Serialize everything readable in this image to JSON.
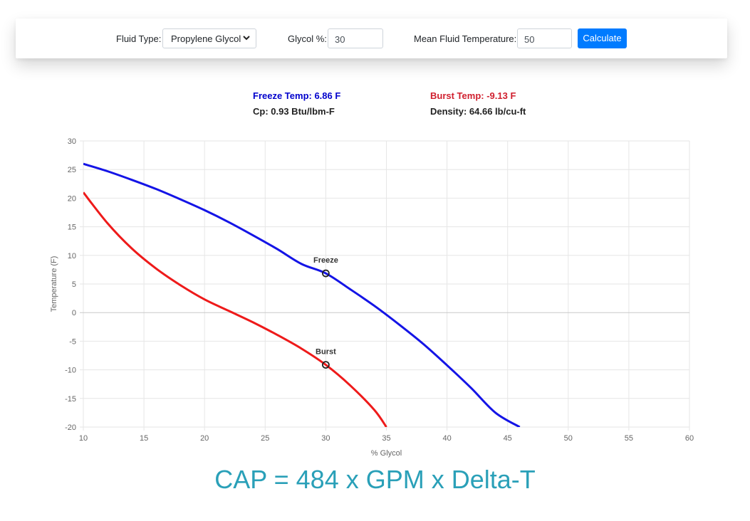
{
  "toolbar": {
    "fluid_type_label": "Fluid Type:",
    "fluid_type_value": "Propylene Glycol",
    "glycol_label": "Glycol %:",
    "glycol_value": "30",
    "mean_temp_label": "Mean Fluid Temperature:",
    "mean_temp_value": "50",
    "calculate_label": "Calculate"
  },
  "results": {
    "freeze": "Freeze Temp: 6.86 F",
    "burst": "Burst Temp: -9.13 F",
    "cp": "Cp: 0.93 Btu/lbm-F",
    "density": "Density: 64.66 lb/cu-ft"
  },
  "chart_data": {
    "type": "line",
    "xlabel": "% Glycol",
    "ylabel": "Temperature (F)",
    "xlim": [
      10,
      60
    ],
    "ylim": [
      -20,
      30
    ],
    "x_ticks": [
      10,
      15,
      20,
      25,
      30,
      35,
      40,
      45,
      50,
      55,
      60
    ],
    "y_ticks": [
      30,
      25,
      20,
      15,
      10,
      5,
      0,
      -5,
      -10,
      -15,
      -20
    ],
    "grid": true,
    "series": [
      {
        "color": "#1414e6",
        "x": [
          10,
          12,
          14,
          16,
          18,
          20,
          22,
          24,
          26,
          28,
          30,
          32,
          34,
          36,
          38,
          40,
          42,
          44,
          46
        ],
        "y": [
          26,
          24.7,
          23.2,
          21.6,
          19.8,
          17.9,
          15.8,
          13.5,
          11.1,
          8.5,
          6.86,
          4.1,
          1.2,
          -2.0,
          -5.4,
          -9.2,
          -13.2,
          -17.5,
          -20.0
        ]
      },
      {
        "color": "#ee1a1a",
        "x": [
          10,
          12,
          14,
          16,
          18,
          20,
          22,
          24,
          26,
          28,
          30,
          32,
          34,
          35
        ],
        "y": [
          21,
          15.6,
          11.2,
          7.7,
          4.8,
          2.3,
          0.3,
          -1.7,
          -3.9,
          -6.3,
          -9.13,
          -12.7,
          -17.0,
          -20.0
        ]
      }
    ],
    "annotations": [
      {
        "text": "Freeze",
        "x": 30,
        "y": 6.86,
        "color": "#1414e6"
      },
      {
        "text": "Burst",
        "x": 30,
        "y": -9.13,
        "color": "#ee1a1a"
      }
    ]
  },
  "formula": "CAP = 484 x GPM x Delta-T"
}
